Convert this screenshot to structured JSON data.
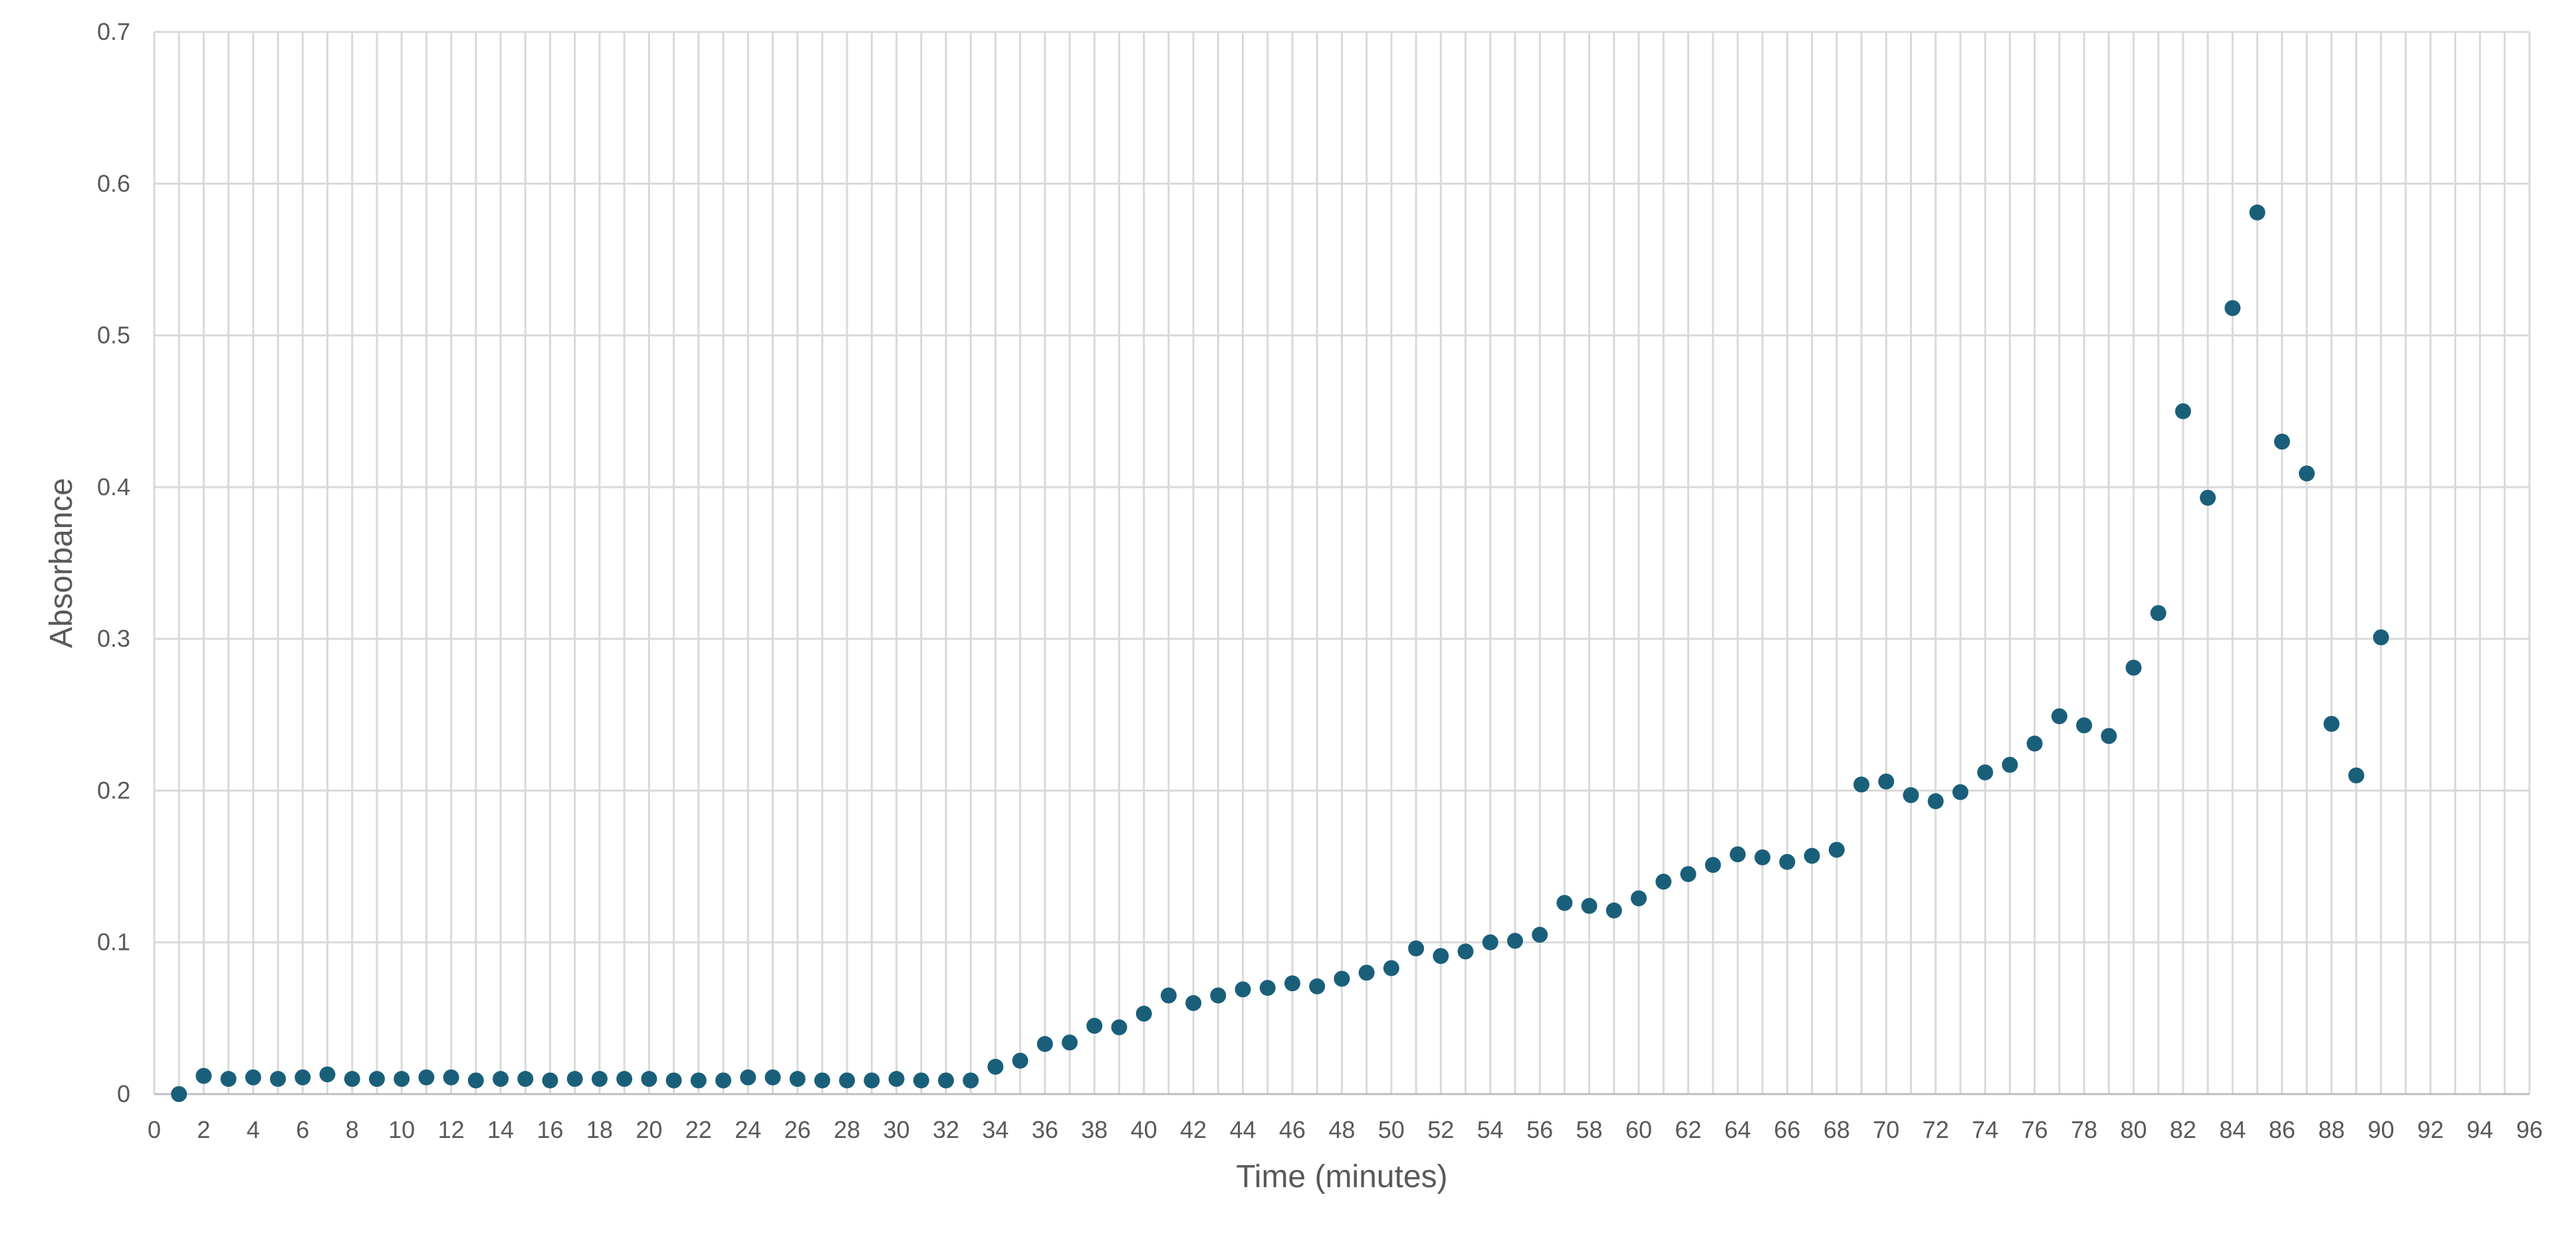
{
  "chart_data": {
    "type": "scatter",
    "title": "",
    "xlabel": "Time (minutes)",
    "ylabel": "Absorbance",
    "xlim": [
      0,
      96
    ],
    "ylim": [
      0,
      0.7
    ],
    "xticks": [
      0,
      2,
      4,
      6,
      8,
      10,
      12,
      14,
      16,
      18,
      20,
      22,
      24,
      26,
      28,
      30,
      32,
      34,
      36,
      38,
      40,
      42,
      44,
      46,
      48,
      50,
      52,
      54,
      56,
      58,
      60,
      62,
      64,
      66,
      68,
      70,
      72,
      74,
      76,
      78,
      80,
      82,
      84,
      86,
      88,
      90,
      92,
      94,
      96
    ],
    "yticks": [
      "0",
      "0.1",
      "0.2",
      "0.3",
      "0.4",
      "0.5",
      "0.6",
      "0.7"
    ],
    "grid": true,
    "legend": "none",
    "marker_color": "#1a5f7a",
    "grid_color": "#d9d9d9",
    "text_color": "#595959",
    "series": [
      {
        "x": [
          1,
          2,
          3,
          4,
          5,
          6,
          7,
          8,
          9,
          10,
          11,
          12,
          13,
          14,
          15,
          16,
          17,
          18,
          19,
          20,
          21,
          22,
          23,
          24,
          25,
          26,
          27,
          28,
          29,
          30,
          31,
          32,
          33,
          34,
          35,
          36,
          37,
          38,
          39,
          40,
          41,
          42,
          43,
          44,
          45,
          46,
          47,
          48,
          49,
          50,
          51,
          52,
          53,
          54,
          55,
          56,
          57,
          58,
          59,
          60,
          61,
          62,
          63,
          64,
          65,
          66,
          67,
          68,
          69,
          70,
          71,
          72,
          73,
          74,
          75,
          76,
          77,
          78,
          79,
          80,
          81,
          82,
          83,
          84,
          85,
          86,
          87,
          88,
          89,
          90
        ],
        "y": [
          0,
          0.012,
          0.01,
          0.011,
          0.01,
          0.011,
          0.013,
          0.01,
          0.01,
          0.01,
          0.011,
          0.011,
          0.009,
          0.01,
          0.01,
          0.009,
          0.01,
          0.01,
          0.01,
          0.01,
          0.009,
          0.009,
          0.009,
          0.011,
          0.011,
          0.01,
          0.009,
          0.009,
          0.009,
          0.01,
          0.009,
          0.009,
          0.009,
          0.018,
          0.022,
          0.033,
          0.034,
          0.045,
          0.044,
          0.053,
          0.065,
          0.06,
          0.065,
          0.069,
          0.07,
          0.073,
          0.071,
          0.076,
          0.08,
          0.083,
          0.096,
          0.091,
          0.094,
          0.1,
          0.101,
          0.105,
          0.126,
          0.124,
          0.121,
          0.129,
          0.14,
          0.145,
          0.151,
          0.158,
          0.156,
          0.153,
          0.157,
          0.161,
          0.204,
          0.206,
          0.197,
          0.193,
          0.199,
          0.212,
          0.217,
          0.231,
          0.249,
          0.243,
          0.236,
          0.281,
          0.317,
          0.45,
          0.393,
          0.518,
          0.581,
          0.43,
          0.409,
          0.244,
          0.21,
          0.301
        ]
      }
    ]
  }
}
